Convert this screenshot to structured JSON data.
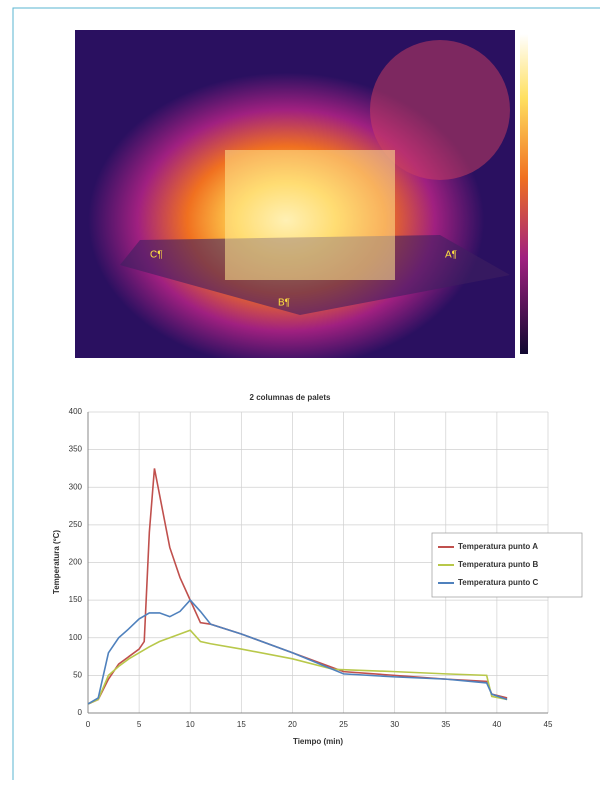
{
  "thermal_image": {
    "point_labels": [
      "C¶",
      "A¶",
      "B¶"
    ]
  },
  "chart_data": {
    "type": "line",
    "title": "2 columnas de palets",
    "x_label": "Tiempo (min)",
    "y_label": "Temperatura (ºC)",
    "xlim": [
      0,
      45
    ],
    "xticks": [
      0,
      5,
      10,
      15,
      20,
      25,
      30,
      35,
      40,
      45
    ],
    "ylim": [
      0,
      400
    ],
    "yticks": [
      0,
      50,
      100,
      150,
      200,
      250,
      300,
      350,
      400
    ],
    "grid": true,
    "legend": "right",
    "series": [
      {
        "name": "Temperatura punto A",
        "color": "#c0504d",
        "x": [
          0,
          1,
          2,
          3,
          4,
          5,
          5.5,
          6,
          6.5,
          7,
          8,
          9,
          10,
          11,
          12,
          15,
          20,
          25,
          30,
          35,
          39,
          39.5,
          41
        ],
        "values": [
          12,
          18,
          45,
          65,
          75,
          85,
          95,
          240,
          325,
          290,
          220,
          180,
          150,
          120,
          118,
          105,
          80,
          55,
          50,
          45,
          42,
          25,
          20
        ]
      },
      {
        "name": "Temperatura punto B",
        "color": "#b8c84a",
        "x": [
          0,
          1,
          2,
          3,
          4,
          5,
          6,
          7,
          8,
          9,
          10,
          11,
          12,
          15,
          20,
          24,
          30,
          35,
          39,
          39.5,
          41
        ],
        "values": [
          12,
          18,
          50,
          62,
          72,
          80,
          88,
          95,
          100,
          105,
          110,
          95,
          92,
          85,
          72,
          58,
          55,
          52,
          50,
          22,
          18
        ]
      },
      {
        "name": "Temperatura punto C",
        "color": "#4f81bd",
        "x": [
          0,
          1,
          2,
          3,
          4,
          5,
          6,
          7,
          8,
          9,
          10,
          11,
          12,
          15,
          20,
          25,
          30,
          35,
          39,
          39.5,
          41
        ],
        "values": [
          12,
          20,
          80,
          100,
          112,
          125,
          133,
          133,
          128,
          135,
          150,
          135,
          118,
          105,
          80,
          52,
          48,
          45,
          40,
          25,
          18
        ]
      }
    ]
  }
}
